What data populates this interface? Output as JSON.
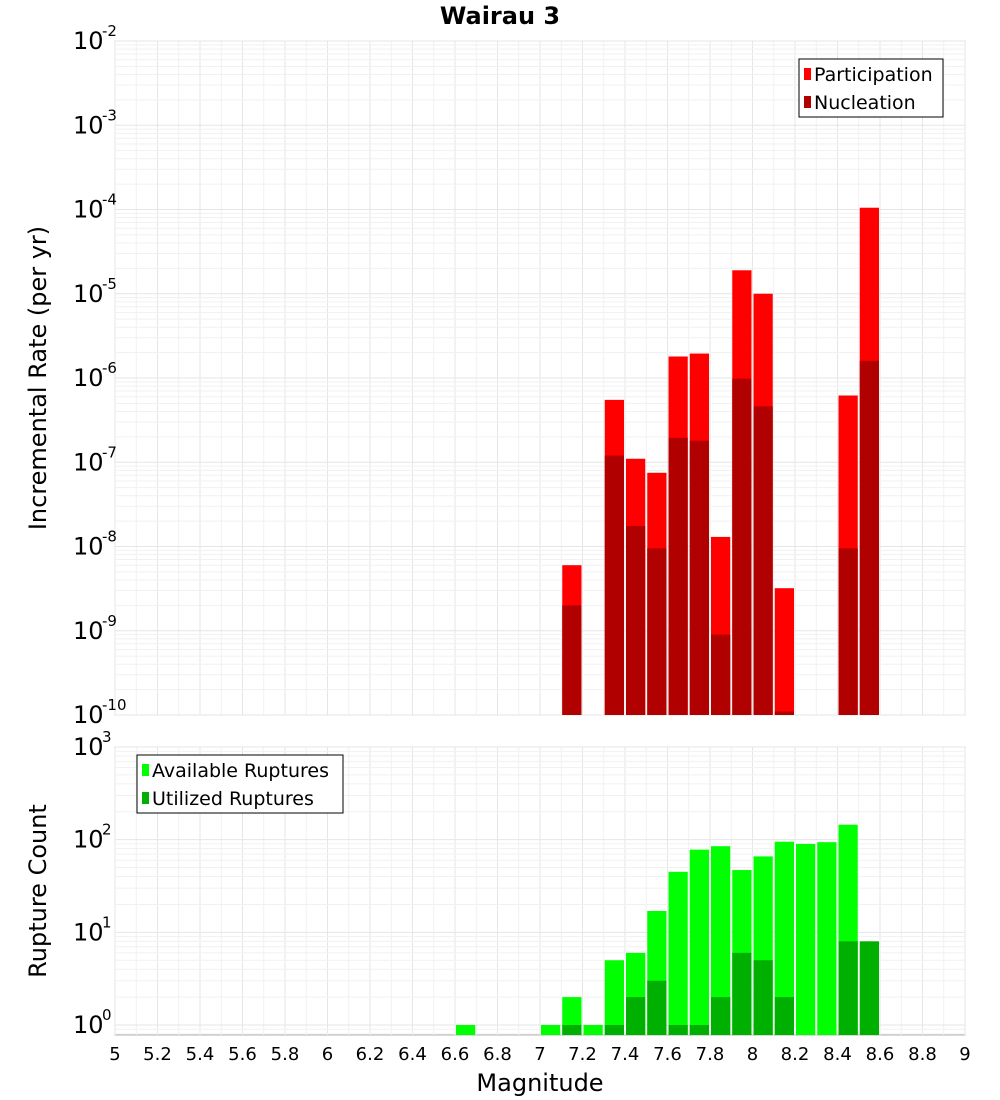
{
  "chart_data": {
    "title": "Wairau 3",
    "xlabel": "Magnitude",
    "xlim": [
      5,
      9
    ],
    "x_ticks": [
      "5",
      "5.2",
      "5.4",
      "5.6",
      "5.8",
      "6",
      "6.2",
      "6.4",
      "6.6",
      "6.8",
      "7",
      "7.2",
      "7.4",
      "7.6",
      "7.8",
      "8",
      "8.2",
      "8.4",
      "8.6",
      "8.8",
      "9"
    ],
    "bin_width": 0.1,
    "panels": [
      {
        "type": "bar",
        "scale": "log",
        "ylabel": "Incremental Rate (per yr)",
        "ylim": [
          1e-10,
          0.01
        ],
        "y_tick_exponents": [
          "-10",
          "-9",
          "-8",
          "-7",
          "-6",
          "-5",
          "-4",
          "-3",
          "-2"
        ],
        "legend_position": "top-right",
        "grid": true,
        "series": [
          {
            "name": "Participation",
            "color": "#ff0000",
            "x": [
              7.15,
              7.35,
              7.45,
              7.55,
              7.65,
              7.75,
              7.85,
              7.95,
              8.05,
              8.15,
              8.45,
              8.55
            ],
            "values": [
              6e-09,
              5.5e-07,
              1.1e-07,
              7.5e-08,
              1.8e-06,
              1.95e-06,
              1.3e-08,
              1.9e-05,
              1e-05,
              3.2e-09,
              6.2e-07,
              0.000105
            ]
          },
          {
            "name": "Nucleation",
            "color": "#b00000",
            "x": [
              7.15,
              7.35,
              7.45,
              7.55,
              7.65,
              7.75,
              7.85,
              7.95,
              8.05,
              8.15,
              8.45,
              8.55
            ],
            "values": [
              2e-09,
              1.2e-07,
              1.75e-08,
              9.5e-09,
              1.95e-07,
              1.8e-07,
              9e-10,
              9.8e-07,
              4.6e-07,
              1.1e-10,
              9.5e-09,
              1.6e-06
            ]
          }
        ]
      },
      {
        "type": "bar",
        "scale": "log",
        "ylabel": "Rupture Count",
        "ylim": [
          0.78,
          1000
        ],
        "y_tick_exponents": [
          "0",
          "1",
          "2",
          "3"
        ],
        "legend_position": "top-left",
        "grid": true,
        "series": [
          {
            "name": "Available Ruptures",
            "color": "#00ff00",
            "x": [
              6.65,
              7.05,
              7.15,
              7.25,
              7.35,
              7.45,
              7.55,
              7.65,
              7.75,
              7.85,
              7.95,
              8.05,
              8.15,
              8.25,
              8.35,
              8.45
            ],
            "values": [
              1,
              1,
              2,
              1,
              5,
              6,
              17,
              45,
              78,
              85,
              47,
              66,
              95,
              90,
              94,
              145
            ]
          },
          {
            "name": "Utilized Ruptures",
            "color": "#00b000",
            "x": [
              7.15,
              7.35,
              7.45,
              7.55,
              7.65,
              7.75,
              7.85,
              7.95,
              8.05,
              8.15,
              8.45,
              8.55
            ],
            "values": [
              1,
              1,
              2,
              3,
              1,
              1,
              2,
              6,
              5,
              2,
              8,
              8
            ]
          }
        ]
      }
    ]
  }
}
